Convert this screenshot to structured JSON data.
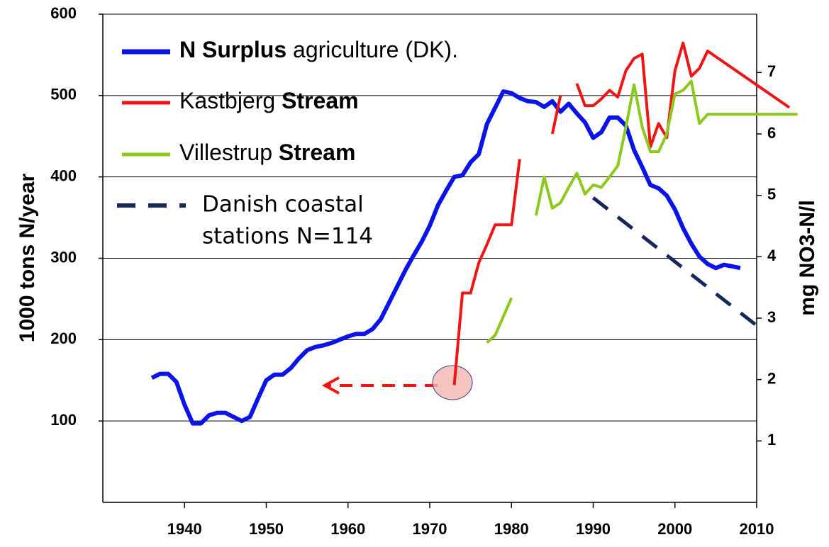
{
  "chart_data": {
    "type": "line",
    "y_label": "1000 tons N/year",
    "y2_label": "mg NO3-N/l",
    "xlim": [
      1930,
      2010
    ],
    "xticks": [
      1940,
      1950,
      1960,
      1970,
      1980,
      1990,
      2000,
      2010
    ],
    "ylim": [
      0,
      600
    ],
    "yticks": [
      100,
      200,
      300,
      400,
      500,
      600
    ],
    "y2lim": [
      0,
      7.95
    ],
    "y2ticks": [
      1,
      2,
      3,
      4,
      5,
      6,
      7
    ],
    "grid": true,
    "series": [
      {
        "name": [
          {
            "text": "N Surplus",
            "bold": true
          },
          {
            "text": " agriculture (DK).",
            "bold": false
          }
        ],
        "color": "#0a14e6",
        "width": 6,
        "dash": false,
        "x": [
          1936,
          1937,
          1938,
          1939,
          1940,
          1941,
          1942,
          1943,
          1944,
          1945,
          1946,
          1947,
          1948,
          1949,
          1950,
          1951,
          1952,
          1953,
          1954,
          1955,
          1956,
          1957,
          1958,
          1959,
          1960,
          1961,
          1962,
          1963,
          1964,
          1965,
          1966,
          1967,
          1968,
          1969,
          1970,
          1971,
          1972,
          1973,
          1974,
          1975,
          1976,
          1977,
          1978,
          1979,
          1980,
          1981,
          1982,
          1983,
          1984,
          1985,
          1986,
          1987,
          1988,
          1989,
          1990,
          1991,
          1992,
          1993,
          1994,
          1995,
          1996,
          1997,
          1998,
          1999,
          2000,
          2001,
          2002,
          2003,
          2004,
          2005,
          2006,
          2007,
          2008
        ],
        "values": [
          153,
          158,
          158,
          148,
          120,
          97,
          97,
          107,
          110,
          110,
          105,
          100,
          105,
          128,
          150,
          157,
          157,
          165,
          177,
          187,
          191,
          193,
          196,
          200,
          204,
          207,
          207,
          213,
          225,
          245,
          265,
          285,
          303,
          320,
          340,
          365,
          383,
          400,
          402,
          418,
          428,
          465,
          485,
          505,
          503,
          497,
          493,
          492,
          486,
          493,
          480,
          490,
          478,
          467,
          448,
          455,
          473,
          473,
          463,
          433,
          412,
          390,
          386,
          377,
          360,
          337,
          318,
          302,
          293,
          288,
          292,
          290,
          288
        ]
      },
      {
        "name": [
          {
            "text": "Kastbjerg ",
            "bold": false
          },
          {
            "text": "Stream",
            "bold": true
          }
        ],
        "color": "#f01414",
        "width": 4,
        "dash": false,
        "axis": "y2",
        "x": [
          1973,
          1974,
          1975,
          1976,
          1977,
          1978,
          1979,
          1980,
          1981,
          1982,
          1985,
          1986,
          1987,
          1988,
          1989,
          1990,
          1991,
          1992,
          1993,
          1994,
          1995,
          1996,
          1997,
          1998,
          1999,
          2000,
          2001,
          2002,
          2003,
          2004,
          2014
        ],
        "values": [
          1.91,
          3.41,
          3.41,
          3.9,
          4.2,
          4.52,
          4.52,
          4.52,
          5.59,
          null,
          6.0,
          6.63,
          null,
          6.82,
          6.46,
          6.46,
          6.57,
          6.71,
          6.6,
          7.03,
          7.23,
          7.3,
          5.79,
          6.17,
          5.94,
          7.03,
          7.48,
          6.94,
          7.07,
          7.35,
          6.43
        ]
      },
      {
        "name": [
          {
            "text": "Villestrup ",
            "bold": false
          },
          {
            "text": "Stream",
            "bold": true
          }
        ],
        "color": "#8cc81e",
        "width": 4,
        "dash": false,
        "axis": "y2",
        "x": [
          1977,
          1978,
          1980,
          1981,
          1983,
          1984,
          1985,
          1986,
          1987,
          1988,
          1989,
          1990,
          1991,
          1992,
          1993,
          1994,
          1995,
          1996,
          1997,
          1998,
          1999,
          2000,
          2001,
          2002,
          2003,
          2004,
          2015
        ],
        "values": [
          2.6,
          2.72,
          3.33,
          null,
          4.67,
          5.3,
          4.79,
          4.88,
          5.13,
          5.36,
          5.02,
          5.17,
          5.13,
          5.3,
          5.48,
          6.11,
          6.8,
          6.11,
          5.71,
          5.71,
          6.0,
          6.65,
          6.71,
          6.86,
          6.17,
          6.32,
          6.32
        ]
      },
      {
        "name": [
          "Danish coastal",
          "stations N=114"
        ],
        "color": "#14285a",
        "width": 5,
        "dash": true,
        "axis": "y2",
        "x": [
          1990,
          2010
        ],
        "values": [
          4.96,
          2.88
        ]
      }
    ]
  }
}
